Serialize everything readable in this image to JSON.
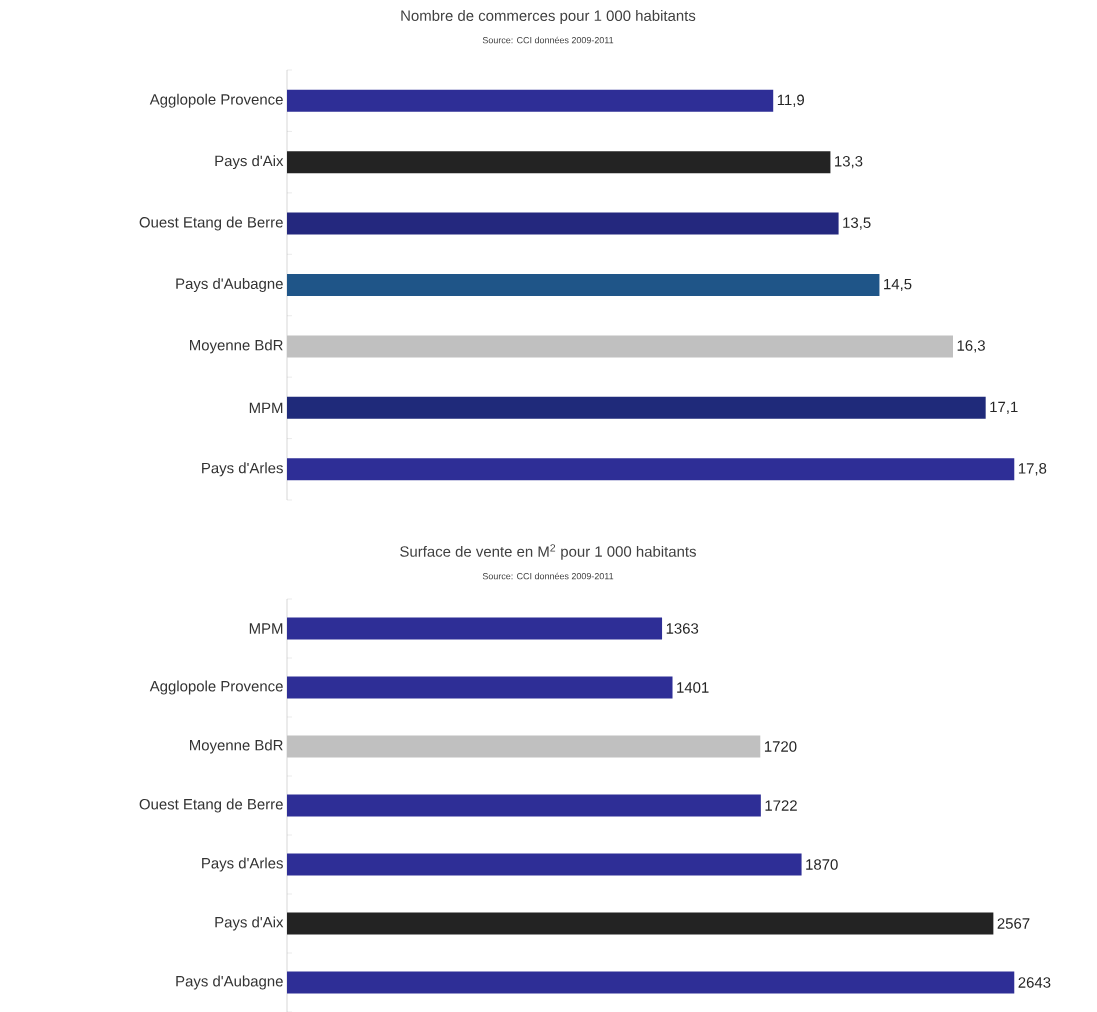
{
  "chart_data": [
    {
      "type": "bar",
      "orientation": "horizontal",
      "title": "Nombre de commerces pour 1 000 habitants",
      "subtitle": "Source: CCI  données 2009-2011",
      "categories": [
        "Agglopole Provence",
        "Pays d'Aix",
        "Ouest Etang de Berre",
        "Pays d'Aubagne",
        "Moyenne BdR",
        "MPM",
        "Pays d'Arles"
      ],
      "values": [
        11.9,
        13.3,
        13.5,
        14.5,
        16.3,
        17.1,
        17.8
      ],
      "value_labels": [
        "11,9",
        "13,3",
        "13,5",
        "14,5",
        "16,3",
        "17,1",
        "17,8"
      ],
      "colors": [
        "#2e2e96",
        "#232323",
        "#24287e",
        "#1f5588",
        "#c0c0c0",
        "#1f2a7a",
        "#2e2e96"
      ]
    },
    {
      "type": "bar",
      "orientation": "horizontal",
      "title": "Surface de vente en M$^{2}$ pour 1 000 habitants",
      "subtitle": "Source: CCI  données 2009-2011",
      "categories": [
        "MPM",
        "Agglopole Provence",
        "Moyenne BdR",
        "Ouest Etang de Berre",
        "Pays d'Arles",
        "Pays d'Aix",
        "Pays d'Aubagne"
      ],
      "values": [
        1363,
        1401,
        1720,
        1722,
        1870,
        2567,
        2643
      ],
      "value_labels": [
        "1363",
        "1401",
        "1720",
        "1722",
        "1870",
        "2567",
        "2643"
      ],
      "colors": [
        "#2e2e96",
        "#2e2e96",
        "#c0c0c0",
        "#2e2e96",
        "#2e2e96",
        "#232323",
        "#2e2e96"
      ]
    }
  ]
}
